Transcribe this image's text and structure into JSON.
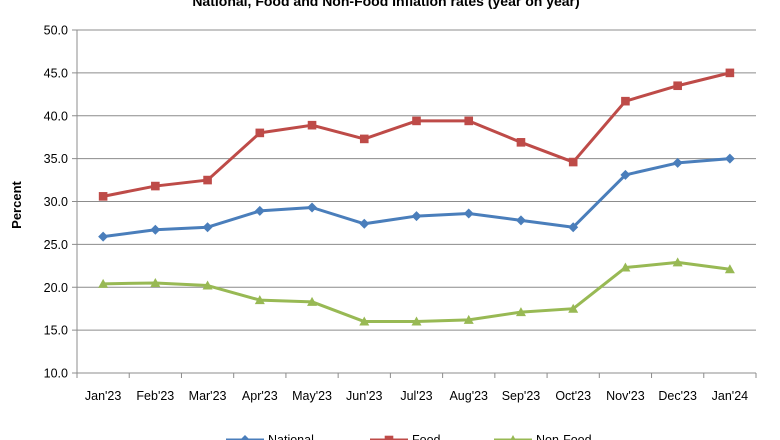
{
  "chart_data": {
    "type": "line",
    "title": "National, Food and Non-Food Inflation rates (year on year)",
    "xlabel": "",
    "ylabel": "Percent",
    "categories": [
      "Jan'23",
      "Feb'23",
      "Mar'23",
      "Apr'23",
      "May'23",
      "Jun'23",
      "Jul'23",
      "Aug'23",
      "Sep'23",
      "Oct'23",
      "Nov'23",
      "Dec'23",
      "Jan'24"
    ],
    "ylim": [
      10.0,
      50.0
    ],
    "yticks": [
      "10.0",
      "15.0",
      "20.0",
      "25.0",
      "30.0",
      "35.0",
      "40.0",
      "45.0",
      "50.0"
    ],
    "grid": "horizontal",
    "legend_position": "bottom",
    "series": [
      {
        "name": "National",
        "color": "#4A7EBB",
        "marker": "diamond",
        "values": [
          25.9,
          26.7,
          27.0,
          28.9,
          29.3,
          27.4,
          28.3,
          28.6,
          27.8,
          27.0,
          33.1,
          34.5,
          35.0
        ]
      },
      {
        "name": "Food",
        "color": "#BE4B48",
        "marker": "square",
        "values": [
          30.6,
          31.8,
          32.5,
          38.0,
          38.9,
          37.3,
          39.4,
          39.4,
          36.9,
          34.6,
          41.7,
          43.5,
          45.0
        ]
      },
      {
        "name": "Non-Food",
        "color": "#98B954",
        "marker": "triangle",
        "values": [
          20.4,
          20.5,
          20.2,
          18.5,
          18.3,
          16.0,
          16.0,
          16.2,
          17.1,
          17.5,
          22.3,
          22.9,
          22.1
        ]
      }
    ]
  }
}
